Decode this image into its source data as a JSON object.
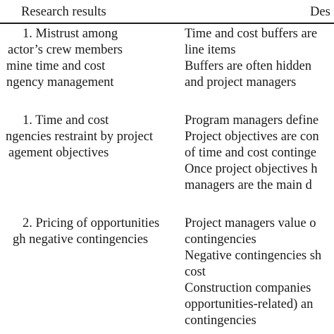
{
  "table": {
    "headers": {
      "results": "Research results",
      "description": "Des"
    },
    "rows": [
      {
        "result_lines": [
          "1. Mistrust among",
          "actor’s crew members",
          "mine time and cost",
          "ngency management"
        ],
        "description_lines": [
          "Time and cost buffers are",
          "line items",
          "Buffers are often hidden",
          "and project managers"
        ]
      },
      {
        "result_lines": [
          "1. Time and cost",
          "ngencies restraint by project",
          "agement objectives"
        ],
        "description_lines": [
          "Program managers define",
          "Project objectives are con",
          "of time and cost continge",
          "Once project objectives h",
          "managers are the main d"
        ]
      },
      {
        "result_lines": [
          "2. Pricing of opportunities",
          "gh negative contingencies"
        ],
        "description_lines": [
          "Project managers value o",
          "contingencies",
          "Negative contingencies sh",
          "cost",
          "Construction companies",
          "opportunities-related) an",
          "contingencies"
        ]
      }
    ]
  }
}
